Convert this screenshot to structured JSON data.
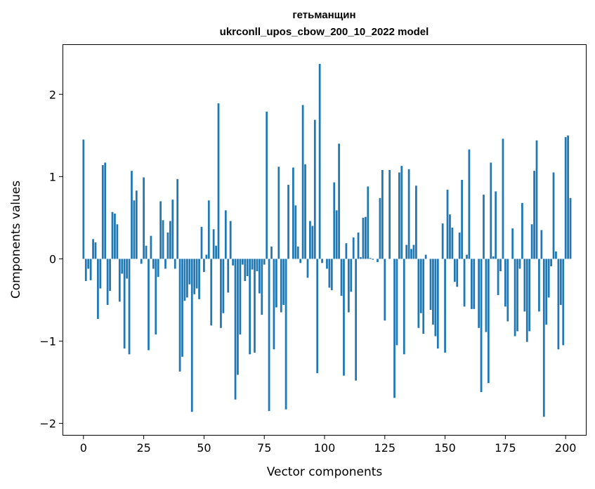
{
  "chart_data": {
    "type": "bar",
    "title": "гетьманщин",
    "subtitle": "ukrconll_upos_cbow_200_10_2022 model",
    "xlabel": "Vector components",
    "ylabel": "Components values",
    "xlim": [
      -8.4,
      208.4
    ],
    "ylim": [
      -2.14,
      2.6
    ],
    "xticks": [
      0,
      25,
      50,
      75,
      100,
      125,
      150,
      175,
      200
    ],
    "xtick_labels": [
      "0",
      "25",
      "50",
      "75",
      "100",
      "125",
      "150",
      "175",
      "200"
    ],
    "yticks": [
      -2,
      -1,
      0,
      1,
      2
    ],
    "ytick_labels": [
      "−2",
      "−1",
      "0",
      "1",
      "2"
    ],
    "bar_color": "#1f77b4",
    "grid": false,
    "legend": "none",
    "values": [
      1.45,
      -0.27,
      -0.12,
      -0.26,
      0.24,
      0.2,
      -0.73,
      -0.36,
      1.14,
      1.17,
      -0.56,
      -0.39,
      0.57,
      0.55,
      0.42,
      -0.52,
      -0.18,
      -1.09,
      -0.24,
      -1.16,
      1.07,
      0.71,
      0.83,
      0.0,
      -0.06,
      0.99,
      0.16,
      -1.11,
      0.28,
      -0.12,
      -0.92,
      -0.22,
      0.7,
      0.47,
      -0.12,
      0.32,
      0.46,
      0.72,
      -0.12,
      0.97,
      -1.37,
      -1.19,
      -0.51,
      -0.47,
      -0.31,
      -1.86,
      -0.43,
      -0.36,
      -0.49,
      0.39,
      -0.16,
      0.05,
      0.71,
      -0.81,
      0.36,
      0.16,
      1.89,
      -0.84,
      -0.66,
      0.59,
      -0.41,
      0.46,
      -0.08,
      -1.71,
      -1.41,
      -0.92,
      -0.07,
      -0.27,
      -0.21,
      -1.16,
      -0.13,
      -1.14,
      -0.15,
      -0.42,
      -0.68,
      -0.07,
      1.79,
      -1.85,
      0.15,
      -1.1,
      -0.59,
      1.12,
      -0.65,
      -0.56,
      -1.83,
      0.9,
      0.0,
      1.11,
      0.65,
      0.15,
      -0.05,
      1.87,
      1.15,
      -0.23,
      0.46,
      0.4,
      1.69,
      -1.39,
      2.37,
      -0.05,
      0.0,
      -0.12,
      -0.35,
      -0.38,
      0.93,
      0.59,
      1.4,
      -0.45,
      -1.42,
      0.19,
      -0.65,
      -0.4,
      0.26,
      -1.48,
      0.32,
      0.02,
      0.5,
      0.51,
      0.88,
      0.01,
      -0.01,
      0.0,
      -0.04,
      0.74,
      1.08,
      -0.75,
      0.0,
      1.08,
      0.0,
      -1.69,
      -1.05,
      1.05,
      1.13,
      -1.16,
      0.17,
      1.09,
      0.12,
      0.17,
      0.89,
      -0.84,
      -0.66,
      -0.91,
      0.05,
      0.0,
      -0.62,
      -0.8,
      -0.94,
      -1.09,
      0.0,
      0.43,
      -1.14,
      0.84,
      0.54,
      0.38,
      -0.28,
      -0.34,
      0.32,
      0.96,
      -0.58,
      0.05,
      1.33,
      -0.61,
      -0.61,
      0.0,
      -0.84,
      -1.62,
      0.78,
      -0.89,
      -1.51,
      1.17,
      0.03,
      0.82,
      -0.44,
      -0.15,
      1.46,
      -0.58,
      -0.76,
      0.0,
      0.37,
      -0.94,
      -0.88,
      -0.12,
      0.68,
      -0.64,
      -1.01,
      -0.88,
      0.42,
      1.07,
      1.44,
      -0.64,
      0.35,
      -1.92,
      -0.8,
      -0.47,
      -0.09,
      1.05,
      0.09,
      -1.1,
      -0.56,
      -1.05,
      1.48,
      1.5,
      0.74
    ]
  }
}
